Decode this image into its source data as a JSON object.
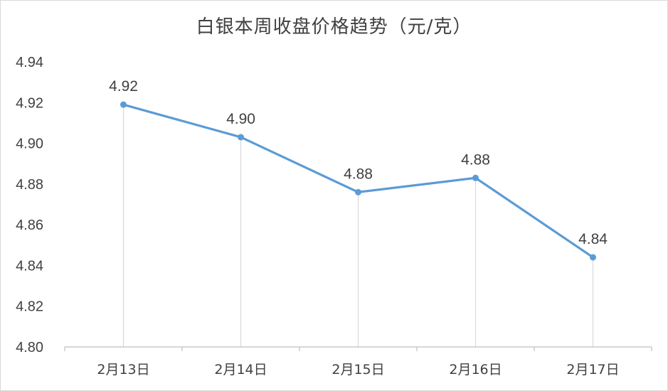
{
  "chart_data": {
    "type": "line",
    "title": "白银本周收盘价格趋势（元/克）",
    "categories": [
      "2月13日",
      "2月14日",
      "2月15日",
      "2月16日",
      "2月17日"
    ],
    "series": [
      {
        "values": [
          4.919,
          4.903,
          4.876,
          4.883,
          4.844
        ],
        "data_labels": [
          "4.92",
          "4.90",
          "4.88",
          "4.88",
          "4.84"
        ]
      }
    ],
    "ylim": [
      4.8,
      4.94
    ],
    "yticks": [
      "4.80",
      "4.82",
      "4.84",
      "4.86",
      "4.88",
      "4.90",
      "4.92",
      "4.94"
    ],
    "grid": "vertical drop lines only",
    "line_color": "#5b9bd5",
    "marker_color": "#5b9bd5",
    "drop_line_color": "#d9d9d9"
  }
}
